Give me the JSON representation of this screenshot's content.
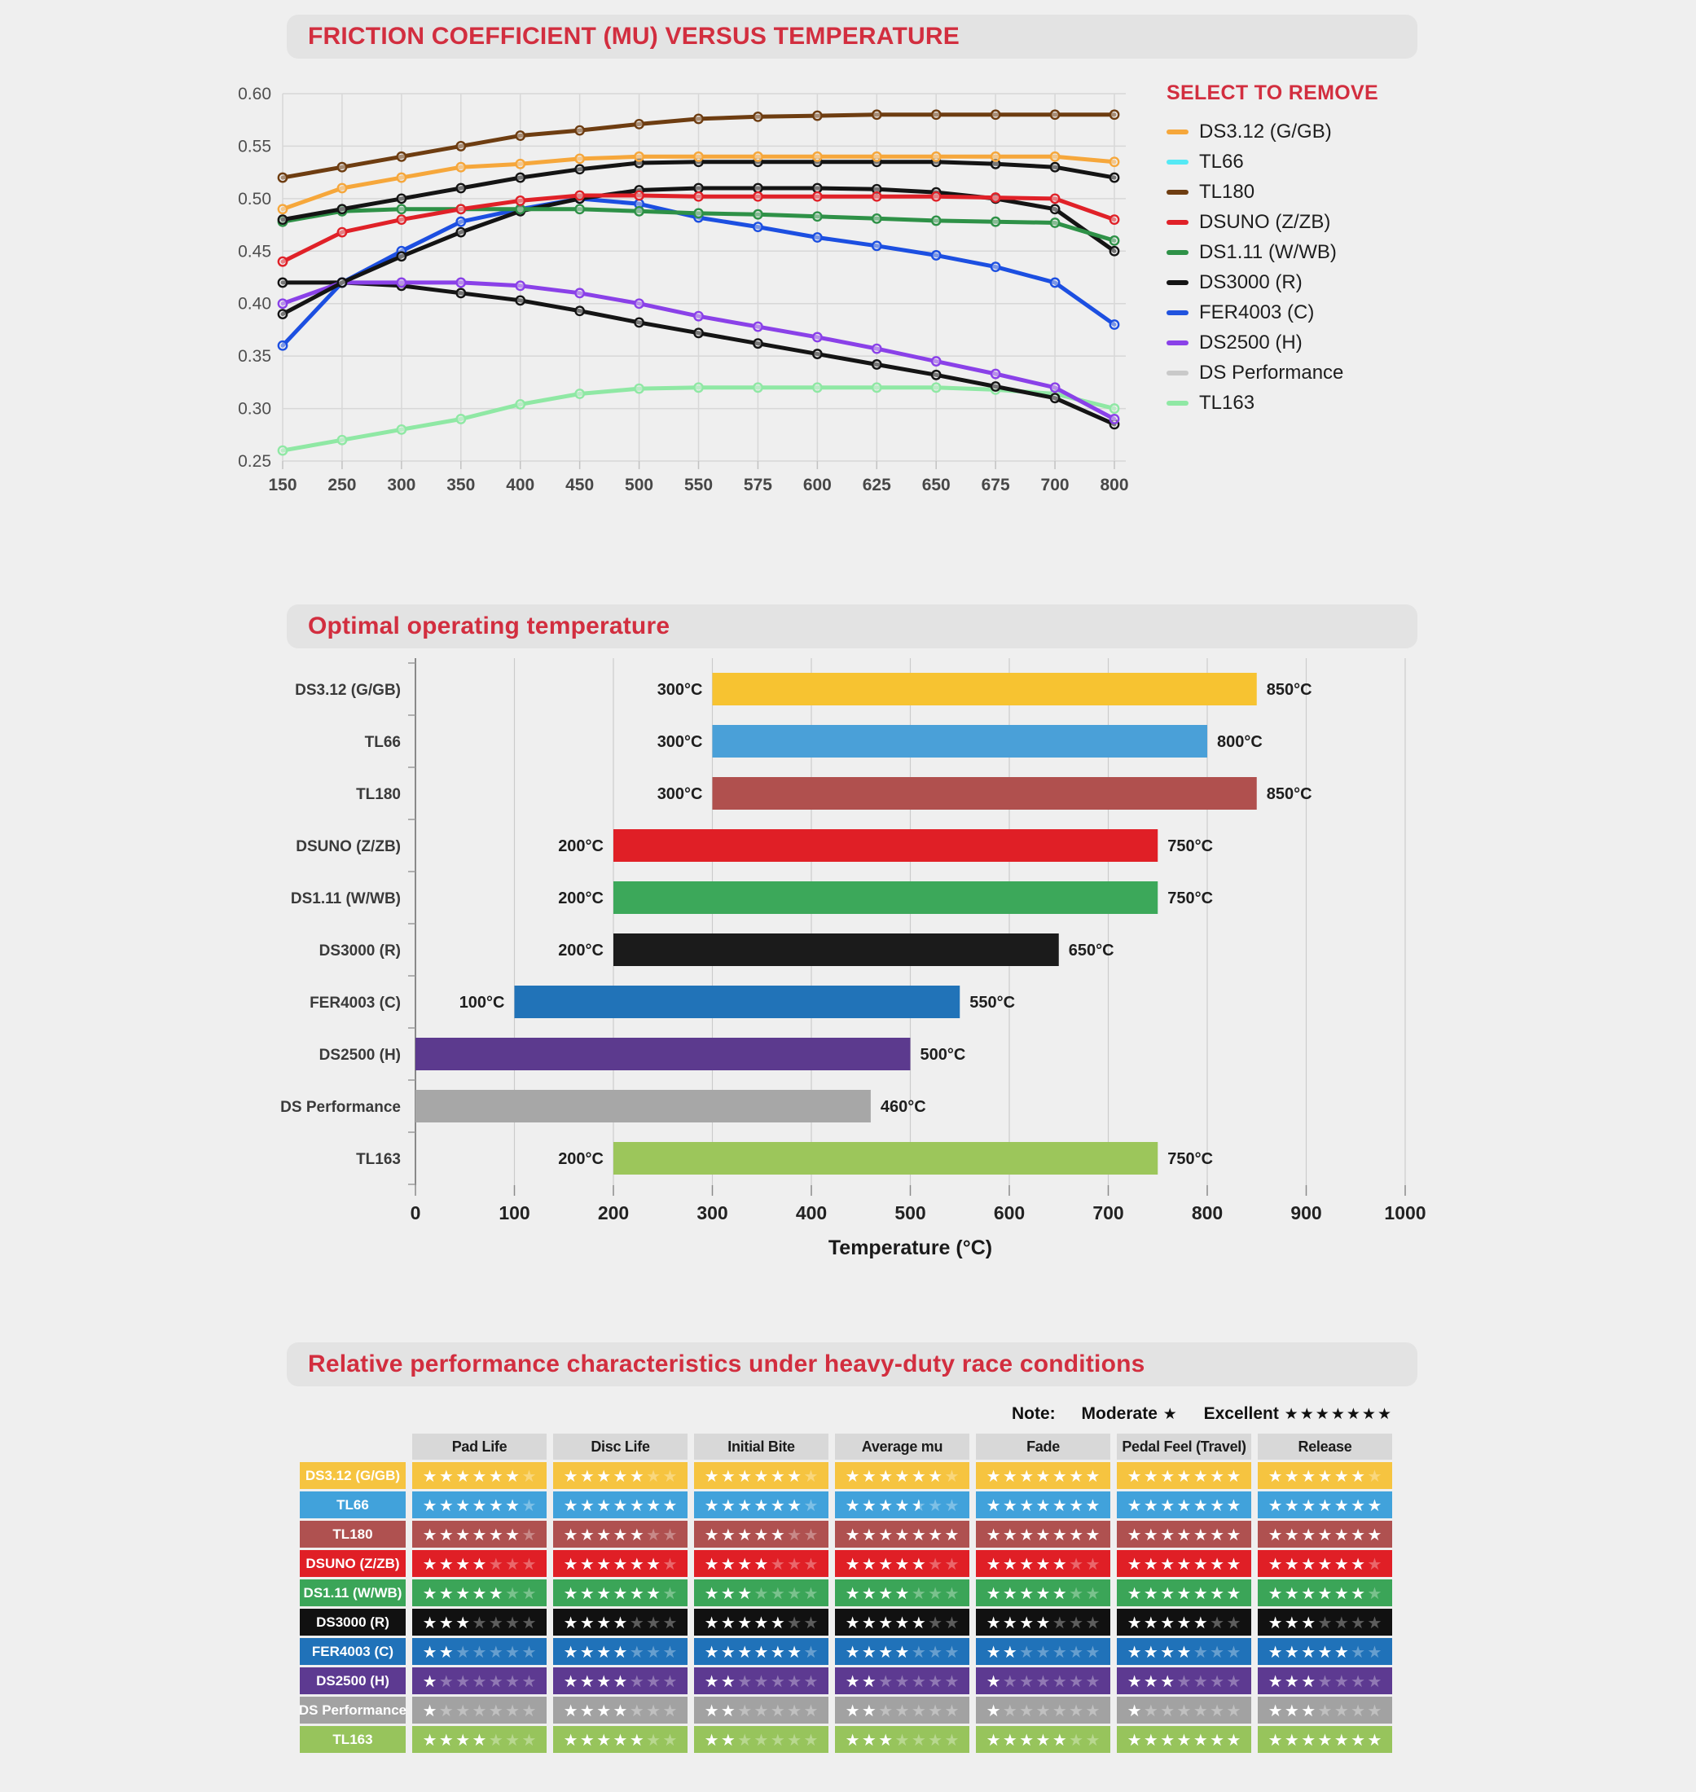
{
  "accent_red": "#d22e3f",
  "chart_data": [
    {
      "type": "line",
      "title": "FRICTION COEFFICIENT (MU) VERSUS TEMPERATURE",
      "legend_title": "SELECT TO REMOVE",
      "legend_position": "right",
      "grid": true,
      "xlabel": "",
      "ylabel": "",
      "x_ticks": [
        150,
        250,
        300,
        350,
        400,
        450,
        500,
        550,
        575,
        600,
        625,
        650,
        675,
        700,
        800
      ],
      "y_tick_labels": [
        "0.25",
        "0.30",
        "0.35",
        "0.40",
        "0.45",
        "0.50",
        "0.55",
        "0.60"
      ],
      "ylim": [
        0.25,
        0.6
      ],
      "series": [
        {
          "name": "DS3.12 (G/GB)",
          "legend_color": "#F6A73B",
          "line_color": "#F6A73B",
          "values": [
            0.49,
            0.51,
            0.52,
            0.53,
            0.533,
            0.538,
            0.54,
            0.54,
            0.54,
            0.54,
            0.54,
            0.54,
            0.54,
            0.54,
            0.535
          ]
        },
        {
          "name": "TL66",
          "legend_color": "#55E9F5",
          "line_color": "#141414",
          "values": [
            0.48,
            0.49,
            0.5,
            0.51,
            0.52,
            0.528,
            0.534,
            0.535,
            0.535,
            0.535,
            0.535,
            0.535,
            0.533,
            0.53,
            0.52
          ]
        },
        {
          "name": "TL180",
          "legend_color": "#6E3D11",
          "line_color": "#6E3D11",
          "values": [
            0.52,
            0.53,
            0.54,
            0.55,
            0.56,
            0.565,
            0.571,
            0.576,
            0.578,
            0.579,
            0.58,
            0.58,
            0.58,
            0.58,
            0.58
          ]
        },
        {
          "name": "DSUNO (Z/ZB)",
          "legend_color": "#E02128",
          "line_color": "#E02128",
          "values": [
            0.44,
            0.468,
            0.48,
            0.49,
            0.498,
            0.503,
            0.503,
            0.502,
            0.502,
            0.502,
            0.502,
            0.502,
            0.501,
            0.5,
            0.48
          ]
        },
        {
          "name": "DS1.11 (W/WB)",
          "legend_color": "#2E9147",
          "line_color": "#2E9147",
          "values": [
            0.478,
            0.488,
            0.49,
            0.49,
            0.49,
            0.49,
            0.488,
            0.486,
            0.485,
            0.483,
            0.481,
            0.479,
            0.478,
            0.477,
            0.46
          ]
        },
        {
          "name": "DS3000 (R)",
          "legend_color": "#141414",
          "line_color": "#141414",
          "values": [
            0.39,
            0.42,
            0.445,
            0.468,
            0.488,
            0.5,
            0.508,
            0.51,
            0.51,
            0.51,
            0.509,
            0.506,
            0.5,
            0.49,
            0.45
          ]
        },
        {
          "name": "FER4003 (C)",
          "legend_color": "#2153DE",
          "line_color": "#1C4FE1",
          "values": [
            0.36,
            0.42,
            0.45,
            0.478,
            0.49,
            0.5,
            0.495,
            0.482,
            0.473,
            0.463,
            0.455,
            0.446,
            0.435,
            0.42,
            0.38
          ]
        },
        {
          "name": "DS2500 (H)",
          "legend_color": "#8A41E8",
          "line_color": "#8A41E8",
          "values": [
            0.4,
            0.42,
            0.42,
            0.42,
            0.417,
            0.41,
            0.4,
            0.388,
            0.378,
            0.368,
            0.357,
            0.345,
            0.333,
            0.32,
            0.29
          ]
        },
        {
          "name": "DS Performance",
          "legend_color": "#C9C9C9",
          "line_color": "#141414",
          "values": [
            0.42,
            0.42,
            0.417,
            0.41,
            0.403,
            0.393,
            0.382,
            0.372,
            0.362,
            0.352,
            0.342,
            0.332,
            0.321,
            0.31,
            0.285
          ]
        },
        {
          "name": "TL163",
          "legend_color": "#8FE8A4",
          "line_color": "#8FE8A4",
          "values": [
            0.26,
            0.27,
            0.28,
            0.29,
            0.304,
            0.314,
            0.319,
            0.32,
            0.32,
            0.32,
            0.32,
            0.32,
            0.318,
            0.314,
            0.3
          ]
        }
      ]
    },
    {
      "type": "bar",
      "orientation": "horizontal",
      "title": "Optimal operating temperature",
      "xlabel": "Temperature (°C)",
      "xlim": [
        0,
        1000
      ],
      "x_ticks": [
        0,
        100,
        200,
        300,
        400,
        500,
        600,
        700,
        800,
        900,
        1000
      ],
      "grid": true,
      "bars": [
        {
          "name": "DS3.12 (G/GB)",
          "range": [
            300,
            850
          ],
          "start_label": "300°C",
          "end_label": "850°C",
          "color": "#F7C331"
        },
        {
          "name": "TL66",
          "range": [
            300,
            800
          ],
          "start_label": "300°C",
          "end_label": "800°C",
          "color": "#4AA0D8"
        },
        {
          "name": "TL180",
          "range": [
            300,
            850
          ],
          "start_label": "300°C",
          "end_label": "850°C",
          "color": "#B0504E"
        },
        {
          "name": "DSUNO (Z/ZB)",
          "range": [
            200,
            750
          ],
          "start_label": "200°C",
          "end_label": "750°C",
          "color": "#E01F26"
        },
        {
          "name": "DS1.11 (W/WB)",
          "range": [
            200,
            750
          ],
          "start_label": "200°C",
          "end_label": "750°C",
          "color": "#3CA85A"
        },
        {
          "name": "DS3000 (R)",
          "range": [
            200,
            650
          ],
          "start_label": "200°C",
          "end_label": "650°C",
          "color": "#1B1B1B"
        },
        {
          "name": "FER4003 (C)",
          "range": [
            100,
            550
          ],
          "start_label": "100°C",
          "end_label": "550°C",
          "color": "#2173B8"
        },
        {
          "name": "DS2500 (H)",
          "range": [
            0,
            500
          ],
          "start_label": "",
          "end_label": "500°C",
          "color": "#5C3A8E"
        },
        {
          "name": "DS Performance",
          "range": [
            0,
            460
          ],
          "start_label": "",
          "end_label": "460°C",
          "color": "#A7A7A7"
        },
        {
          "name": "TL163",
          "range": [
            200,
            750
          ],
          "start_label": "200°C",
          "end_label": "750°C",
          "color": "#9CC65B"
        }
      ]
    },
    {
      "type": "table",
      "title": "Relative performance characteristics under heavy-duty race conditions",
      "note": {
        "prefix": "Note:",
        "moderate_label": "Moderate",
        "moderate_stars": 1,
        "excellent_label": "Excellent",
        "excellent_stars": 7
      },
      "max_stars": 7,
      "columns": [
        "Pad Life",
        "Disc Life",
        "Initial Bite",
        "Average mu",
        "Fade",
        "Pedal Feel (Travel)",
        "Release"
      ],
      "rows": [
        {
          "name": "DS3.12 (G/GB)",
          "color": "#F6C440",
          "ratings": [
            6,
            5,
            6,
            6,
            7,
            7,
            6
          ]
        },
        {
          "name": "TL66",
          "color": "#41A2DB",
          "ratings": [
            6,
            7,
            6,
            4.5,
            7,
            7,
            7
          ]
        },
        {
          "name": "TL180",
          "color": "#AF5150",
          "ratings": [
            6,
            5,
            5,
            7,
            7,
            7,
            7
          ]
        },
        {
          "name": "DSUNO (Z/ZB)",
          "color": "#E01F26",
          "ratings": [
            4,
            6,
            4,
            5,
            5,
            7,
            6
          ]
        },
        {
          "name": "DS1.11 (W/WB)",
          "color": "#3BA558",
          "ratings": [
            5,
            6,
            3,
            4,
            5,
            7,
            6
          ]
        },
        {
          "name": "DS3000 (R)",
          "color": "#111111",
          "ratings": [
            3,
            4,
            5,
            5,
            4,
            5,
            3
          ]
        },
        {
          "name": "FER4003 (C)",
          "color": "#2072B9",
          "ratings": [
            2,
            4,
            6,
            4,
            2,
            4,
            5
          ]
        },
        {
          "name": "DS2500 (H)",
          "color": "#5D3A91",
          "ratings": [
            1,
            4,
            2,
            2,
            1,
            3,
            3
          ]
        },
        {
          "name": "DS Performance",
          "color": "#A2A2A2",
          "ratings": [
            1,
            4,
            2,
            2,
            1,
            1,
            3
          ]
        },
        {
          "name": "TL163",
          "color": "#97C45C",
          "ratings": [
            4,
            5,
            2,
            3,
            5,
            7,
            7
          ]
        }
      ]
    }
  ]
}
